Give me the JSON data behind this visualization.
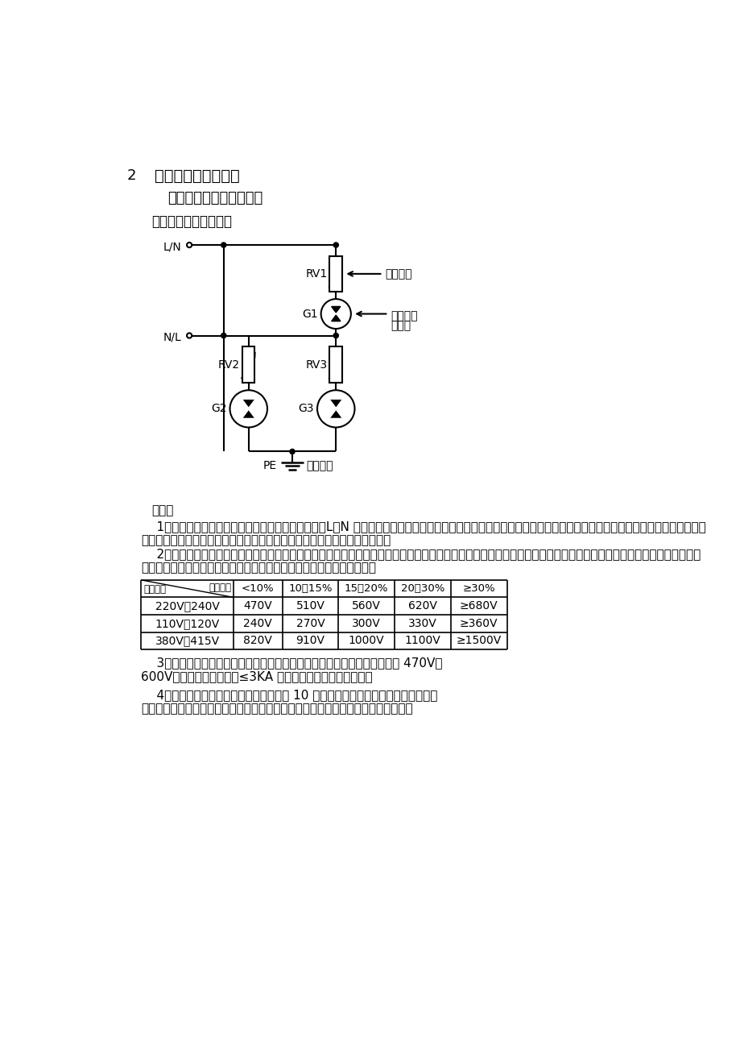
{
  "title_num": "2",
  "title_main": "一、交流电源防雷器",
  "subtitle": "（一）单相并联式防雷器",
  "circuit_label": "电路二：较安全的电路",
  "bg_color": "#ffffff",
  "text_color": "#000000",
  "description_title": "说明：",
  "description_lines": [
    "    1、优点：采用复合对称电路，共模、差模全保护，L、N 可以随便接，正常工作时无漏电流，可延长器件使用寿命，由于陶瓷气体放电管失效模式大多为开路，不易引",
    "起火灾。缺点：万一压敏电阻和陶瓷气体放电管都短路失效时还有可能起火。",
    "    2、压敏电阻的压敏电压值参照下表选取（选压敏电压高一点的更安全、耐用，故障率低，但残压略高）；根据通流容量要求选择外形尺寸和封装形式，或采用几个压敏",
    "电阻并联（应挑选压敏电压相近的并联，以延长使用寿命和确保安全）。"
  ],
  "table_headers": [
    "额定电压\\波动范围",
    "<10%",
    "10～15%",
    "15～20%",
    "20～30%",
    "≥30%"
  ],
  "table_rows": [
    [
      "220V～240V",
      "470V",
      "510V",
      "560V",
      "620V",
      "≥680V"
    ],
    [
      "110V～120V",
      "240V",
      "270V",
      "300V",
      "330V",
      "≥360V"
    ],
    [
      "380V～415V",
      "820V",
      "910V",
      "1000V",
      "1100V",
      "≥1500V"
    ]
  ],
  "note3_line1": "    3、陶瓷气体放电管的通流容量根据要求的通流容量选择，直流击穿电压为 470V～",
  "note3_line2": "600V。当要求的通流容量≤3KA 时，可以用玻璃放电管代替。",
  "note4_line1": "    4、压敏电阻和气体放电管都必须按冲击 10 次以上的降额值计算通流容量（压敏电",
  "note4_line2": "阻为一次冲击通流容量的三分之一左右，气体放电管为最大通流容量的一半左右）。",
  "label_LN": "L/N",
  "label_NL": "N/L",
  "label_PE": "PE",
  "label_RV1": "RV1",
  "label_RV2": "RV2",
  "label_RV3": "RV3",
  "label_G1": "G1",
  "label_G2": "G2",
  "label_G3": "G3",
  "label_yaomindianzu": "压敏电阻",
  "label_taociqiti_1": "陶瓷气体",
  "label_taociqiti_2": "放电管",
  "label_baohujieidi": "保护接地"
}
